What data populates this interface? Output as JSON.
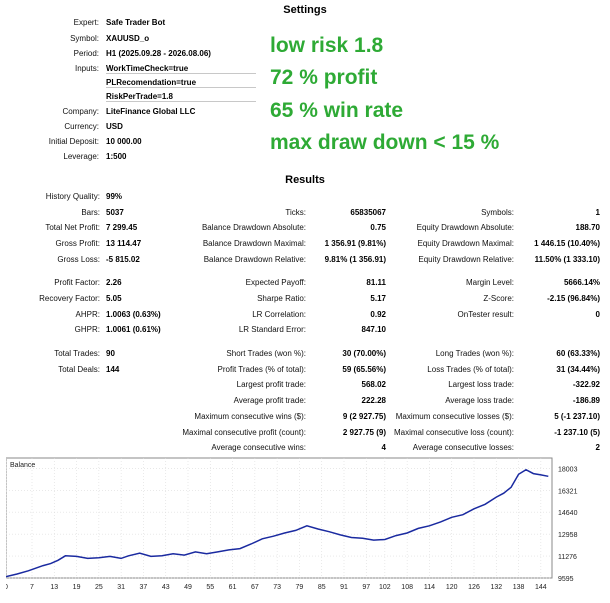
{
  "settings": {
    "title": "Settings",
    "rows": [
      {
        "label": "Expert:",
        "value": "Safe Trader Bot"
      },
      {
        "label": "Symbol:",
        "value": "XAUUSD_o"
      },
      {
        "label": "Period:",
        "value": "H1 (2025.09.28 - 2026.08.06)"
      },
      {
        "label": "Inputs:",
        "value": "WorkTimeCheck=true"
      },
      {
        "label": "",
        "value": "PLRecomendation=true"
      },
      {
        "label": "",
        "value": "RiskPerTrade=1.8"
      },
      {
        "label": "Company:",
        "value": "LiteFinance Global LLC"
      },
      {
        "label": "Currency:",
        "value": "USD"
      },
      {
        "label": "Initial Deposit:",
        "value": "10 000.00"
      },
      {
        "label": "Leverage:",
        "value": "1:500"
      }
    ]
  },
  "promo": [
    "low risk 1.8",
    "72 % profit",
    "65 % win rate",
    "max draw down < 15 %"
  ],
  "results": {
    "title": "Results",
    "col1": [
      {
        "label": "History Quality:",
        "value": "99%"
      },
      {
        "label": "Bars:",
        "value": "5037"
      },
      {
        "label": "Total Net Profit:",
        "value": "7 299.45"
      },
      {
        "label": "Gross Profit:",
        "value": "13 114.47"
      },
      {
        "label": "Gross Loss:",
        "value": "-5 815.02"
      },
      {
        "label": "Profit Factor:",
        "value": "2.26"
      },
      {
        "label": "Recovery Factor:",
        "value": "5.05"
      },
      {
        "label": "AHPR:",
        "value": "1.0063 (0.63%)"
      },
      {
        "label": "GHPR:",
        "value": "1.0061 (0.61%)"
      },
      {
        "label": "Total Trades:",
        "value": "90"
      },
      {
        "label": "Total Deals:",
        "value": "144"
      }
    ],
    "col2": [
      {
        "label": "Ticks:",
        "value": "65835067"
      },
      {
        "label": "Balance Drawdown Absolute:",
        "value": "0.75"
      },
      {
        "label": "Balance Drawdown Maximal:",
        "value": "1 356.91 (9.81%)"
      },
      {
        "label": "Balance Drawdown Relative:",
        "value": "9.81% (1 356.91)"
      },
      {
        "label": "Expected Payoff:",
        "value": "81.11"
      },
      {
        "label": "Sharpe Ratio:",
        "value": "5.17"
      },
      {
        "label": "LR Correlation:",
        "value": "0.92"
      },
      {
        "label": "LR Standard Error:",
        "value": "847.10"
      },
      {
        "label": "Short Trades (won %):",
        "value": "30 (70.00%)"
      },
      {
        "label": "Profit Trades (% of total):",
        "value": "59 (65.56%)"
      },
      {
        "label": "Largest profit trade:",
        "value": "568.02"
      },
      {
        "label": "Average profit trade:",
        "value": "222.28"
      },
      {
        "label": "Maximum consecutive wins ($):",
        "value": "9 (2 927.75)"
      },
      {
        "label": "Maximal consecutive profit (count):",
        "value": "2 927.75 (9)"
      },
      {
        "label": "Average consecutive wins:",
        "value": "4"
      }
    ],
    "col3": [
      {
        "label": "Symbols:",
        "value": "1"
      },
      {
        "label": "Equity Drawdown Absolute:",
        "value": "188.70"
      },
      {
        "label": "Equity Drawdown Maximal:",
        "value": "1 446.15 (10.40%)"
      },
      {
        "label": "Equity Drawdown Relative:",
        "value": "11.50% (1 333.10)"
      },
      {
        "label": "Margin Level:",
        "value": "5666.14%"
      },
      {
        "label": "Z-Score:",
        "value": "-2.15 (96.84%)"
      },
      {
        "label": "OnTester result:",
        "value": "0"
      },
      {
        "label": "Long Trades (won %):",
        "value": "60 (63.33%)"
      },
      {
        "label": "Loss Trades (% of total):",
        "value": "31 (34.44%)"
      },
      {
        "label": "Largest loss trade:",
        "value": "-322.92"
      },
      {
        "label": "Average loss trade:",
        "value": "-186.89"
      },
      {
        "label": "Maximum consecutive losses ($):",
        "value": "5 (-1 237.10)"
      },
      {
        "label": "Maximal consecutive loss (count):",
        "value": "-1 237.10 (5)"
      },
      {
        "label": "Average consecutive losses:",
        "value": "2"
      }
    ]
  },
  "chart_data": {
    "type": "line",
    "title": "Balance",
    "xlabel": "",
    "ylabel": "",
    "grid": true,
    "line_color": "#1a2aa0",
    "xlim": [
      0,
      147
    ],
    "ylim": [
      9595,
      18800
    ],
    "x_ticks": [
      0,
      7,
      13,
      19,
      25,
      31,
      37,
      43,
      49,
      55,
      61,
      67,
      73,
      79,
      85,
      91,
      97,
      102,
      108,
      114,
      120,
      126,
      132,
      138,
      144
    ],
    "y_ticks": [
      "18003",
      "16321",
      "14640",
      "12958",
      "11276",
      "9595"
    ],
    "y_tick_values": [
      18003,
      16321,
      14640,
      12958,
      11276,
      9595
    ],
    "series": [
      {
        "x": [
          0,
          3,
          6,
          8,
          10,
          12,
          14,
          16,
          19,
          22,
          25,
          28,
          31,
          33,
          36,
          39,
          42,
          45,
          48,
          51,
          54,
          57,
          60,
          63,
          66,
          69,
          72,
          75,
          78,
          81,
          84,
          87,
          90,
          93,
          96,
          99,
          102,
          105,
          108,
          111,
          114,
          117,
          120,
          123,
          126,
          129,
          132,
          134,
          136,
          138,
          140,
          142,
          144,
          146
        ],
        "values": [
          9700,
          9900,
          10150,
          10350,
          10550,
          10700,
          10950,
          11300,
          11250,
          11100,
          11150,
          11250,
          11100,
          11300,
          11500,
          11250,
          11300,
          11450,
          11350,
          11600,
          11450,
          11600,
          11750,
          11850,
          12200,
          12600,
          12800,
          13050,
          13250,
          13600,
          13350,
          13150,
          12900,
          12700,
          12650,
          12500,
          12550,
          12850,
          13050,
          13400,
          13600,
          13900,
          14250,
          14450,
          14900,
          15250,
          15800,
          16100,
          16550,
          17550,
          17900,
          17600,
          17500,
          17400
        ]
      }
    ]
  }
}
